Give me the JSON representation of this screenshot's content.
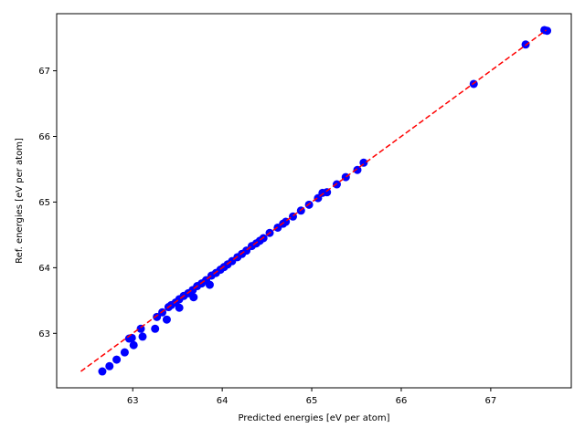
{
  "chart_data": {
    "type": "scatter",
    "xlabel": "Predicted energies [eV per atom]",
    "ylabel": "Ref. energies [eV per atom]",
    "xlim": [
      62.15,
      67.9
    ],
    "ylim": [
      62.17,
      67.87
    ],
    "x_ticks": [
      63,
      64,
      65,
      66,
      67
    ],
    "y_ticks": [
      63,
      64,
      65,
      66,
      67
    ],
    "grid": false,
    "colors": {
      "points": "#0000ff",
      "reference_line": "#ff0000"
    },
    "reference_line": {
      "style": "dashed",
      "x": [
        62.42,
        67.62
      ],
      "y": [
        62.42,
        67.62
      ]
    },
    "points": [
      [
        62.66,
        62.42
      ],
      [
        62.74,
        62.5
      ],
      [
        62.82,
        62.6
      ],
      [
        62.91,
        62.71
      ],
      [
        62.96,
        62.92
      ],
      [
        62.99,
        62.93
      ],
      [
        63.01,
        62.82
      ],
      [
        63.09,
        63.07
      ],
      [
        63.11,
        62.95
      ],
      [
        63.25,
        63.07
      ],
      [
        63.27,
        63.25
      ],
      [
        63.33,
        63.32
      ],
      [
        63.38,
        63.21
      ],
      [
        63.4,
        63.4
      ],
      [
        63.43,
        63.43
      ],
      [
        63.48,
        63.47
      ],
      [
        63.52,
        63.52
      ],
      [
        63.52,
        63.39
      ],
      [
        63.57,
        63.57
      ],
      [
        63.62,
        63.61
      ],
      [
        63.67,
        63.66
      ],
      [
        63.68,
        63.55
      ],
      [
        63.72,
        63.72
      ],
      [
        63.77,
        63.76
      ],
      [
        63.82,
        63.81
      ],
      [
        63.86,
        63.74
      ],
      [
        63.88,
        63.88
      ],
      [
        63.93,
        63.92
      ],
      [
        63.98,
        63.97
      ],
      [
        64.02,
        64.01
      ],
      [
        64.06,
        64.05
      ],
      [
        64.11,
        64.1
      ],
      [
        64.17,
        64.16
      ],
      [
        64.22,
        64.21
      ],
      [
        64.27,
        64.26
      ],
      [
        64.33,
        64.33
      ],
      [
        64.38,
        64.37
      ],
      [
        64.42,
        64.41
      ],
      [
        64.46,
        64.45
      ],
      [
        64.53,
        64.53
      ],
      [
        64.62,
        64.61
      ],
      [
        64.68,
        64.67
      ],
      [
        64.71,
        64.7
      ],
      [
        64.79,
        64.78
      ],
      [
        64.88,
        64.87
      ],
      [
        64.97,
        64.96
      ],
      [
        65.07,
        65.06
      ],
      [
        65.12,
        65.14
      ],
      [
        65.17,
        65.15
      ],
      [
        65.28,
        65.27
      ],
      [
        65.38,
        65.38
      ],
      [
        65.51,
        65.49
      ],
      [
        65.58,
        65.6
      ],
      [
        66.81,
        66.8
      ],
      [
        67.39,
        67.4
      ],
      [
        67.6,
        67.62
      ],
      [
        67.63,
        67.61
      ]
    ]
  }
}
